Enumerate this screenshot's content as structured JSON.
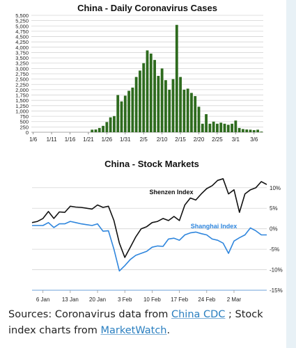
{
  "chart_data": [
    {
      "type": "bar",
      "title": "China - Daily Coronavirus Cases",
      "ylim": [
        0,
        5500
      ],
      "yticks": [
        0,
        250,
        500,
        750,
        1000,
        1250,
        1500,
        1750,
        2000,
        2250,
        2500,
        2750,
        3000,
        3250,
        3500,
        3750,
        4000,
        4250,
        4500,
        4750,
        5000,
        5250,
        5500
      ],
      "ytick_labels": [
        "0",
        "250",
        "500",
        "750",
        "1,000",
        "1,250",
        "1,500",
        "1,750",
        "2,000",
        "2,250",
        "2,500",
        "2,750",
        "3,000",
        "3,250",
        "3,500",
        "3,750",
        "4,000",
        "4,250",
        "4,500",
        "4,750",
        "5,000",
        "5,250",
        "5,500"
      ],
      "categories": [
        "1/6",
        "1/7",
        "1/8",
        "1/9",
        "1/10",
        "1/11",
        "1/12",
        "1/13",
        "1/14",
        "1/15",
        "1/16",
        "1/17",
        "1/18",
        "1/19",
        "1/20",
        "1/21",
        "1/22",
        "1/23",
        "1/24",
        "1/25",
        "1/26",
        "1/27",
        "1/28",
        "1/29",
        "1/30",
        "1/31",
        "2/1",
        "2/2",
        "2/3",
        "2/4",
        "2/5",
        "2/6",
        "2/7",
        "2/8",
        "2/9",
        "2/10",
        "2/11",
        "2/12",
        "2/13",
        "2/14",
        "2/15",
        "2/16",
        "2/17",
        "2/18",
        "2/19",
        "2/20",
        "2/21",
        "2/22",
        "2/23",
        "2/24",
        "2/25",
        "2/26",
        "2/27",
        "2/28",
        "2/29",
        "3/1",
        "3/2",
        "3/3",
        "3/4",
        "3/5",
        "3/6",
        "3/7",
        "3/8"
      ],
      "xtick_labels": [
        "1/6",
        "1/11",
        "1/16",
        "1/21",
        "1/26",
        "1/31",
        "2/5",
        "2/10",
        "2/15",
        "2/20",
        "2/25",
        "3/1",
        "3/6"
      ],
      "values": [
        0,
        0,
        0,
        0,
        0,
        0,
        0,
        0,
        0,
        0,
        0,
        0,
        0,
        0,
        0,
        0,
        120,
        130,
        200,
        300,
        480,
        700,
        760,
        1750,
        1450,
        1720,
        1950,
        2100,
        2600,
        2900,
        3250,
        3850,
        3700,
        3400,
        2650,
        3000,
        2450,
        2000,
        2500,
        5050,
        2600,
        2000,
        2050,
        1850,
        1700,
        1200,
        400,
        850,
        400,
        500,
        400,
        450,
        400,
        350,
        400,
        550,
        200,
        150,
        130,
        120,
        100,
        120,
        30
      ],
      "color": "#2e6b1e",
      "grid": true
    },
    {
      "type": "line",
      "title": "China - Stock Markets",
      "ylim": [
        -15,
        12
      ],
      "yticks": [
        -15,
        -10,
        -5,
        0,
        5,
        10
      ],
      "ytick_labels": [
        "-15%",
        "-10%",
        "-5%",
        "0%",
        "5%",
        "10%"
      ],
      "x": [
        0,
        1,
        2,
        3,
        4,
        5,
        6,
        7,
        8,
        9,
        10,
        11,
        12,
        13,
        14,
        15,
        16,
        17,
        18,
        19,
        20,
        21,
        22,
        23,
        24,
        25,
        26,
        27,
        28,
        29,
        30,
        31,
        32,
        33,
        34,
        35,
        36,
        37,
        38,
        39,
        40,
        41,
        42,
        43
      ],
      "xtick_positions": [
        2,
        7,
        12,
        17,
        22,
        27,
        32,
        37
      ],
      "xtick_labels": [
        "6 Jan",
        "13 Jan",
        "20 Jan",
        "3 Feb",
        "10 Feb",
        "17 Feb",
        "24 Feb",
        "2 Mar"
      ],
      "series": [
        {
          "name": "Shenzen Index",
          "color": "#111111",
          "values": [
            1.5,
            1.8,
            2.5,
            4.2,
            2.5,
            4.1,
            4.0,
            5.5,
            5.3,
            5.2,
            5.0,
            4.8,
            5.8,
            5.2,
            5.5,
            2.0,
            -3.5,
            -7.0,
            -4.5,
            -2.0,
            0.0,
            0.5,
            1.5,
            1.8,
            2.5,
            2.0,
            3.0,
            2.0,
            5.8,
            7.5,
            7.0,
            8.5,
            9.8,
            10.5,
            11.8,
            12.2,
            8.5,
            9.5,
            4.0,
            8.5,
            9.5,
            10.0,
            11.5,
            10.8
          ]
        },
        {
          "name": "Shanghai Index",
          "color": "#2f86dd",
          "values": [
            0.8,
            0.8,
            0.8,
            1.5,
            0.3,
            1.2,
            1.2,
            1.8,
            1.5,
            1.2,
            1.0,
            0.8,
            1.2,
            -0.6,
            -0.5,
            -5.0,
            -10.3,
            -9.0,
            -7.5,
            -6.5,
            -6.0,
            -5.5,
            -4.5,
            -4.2,
            -4.3,
            -2.5,
            -2.3,
            -2.8,
            -1.5,
            -1.0,
            -0.8,
            -1.2,
            -1.5,
            -2.5,
            -2.8,
            -3.5,
            -6.0,
            -3.0,
            -2.2,
            -1.5,
            0.2,
            -0.5,
            -1.5,
            -1.5
          ]
        }
      ],
      "grid": true
    }
  ],
  "caption": {
    "prefix": "Sources: Coronavirus data from ",
    "link1": "China CDC",
    "middle": " ; Stock index charts from ",
    "link2": "MarketWatch",
    "suffix": "."
  },
  "colors": {
    "bar": "#2e6b1e",
    "grid": "#d4d4d4",
    "sidebar": "#e8f1f6",
    "link": "#2a7fc0"
  }
}
